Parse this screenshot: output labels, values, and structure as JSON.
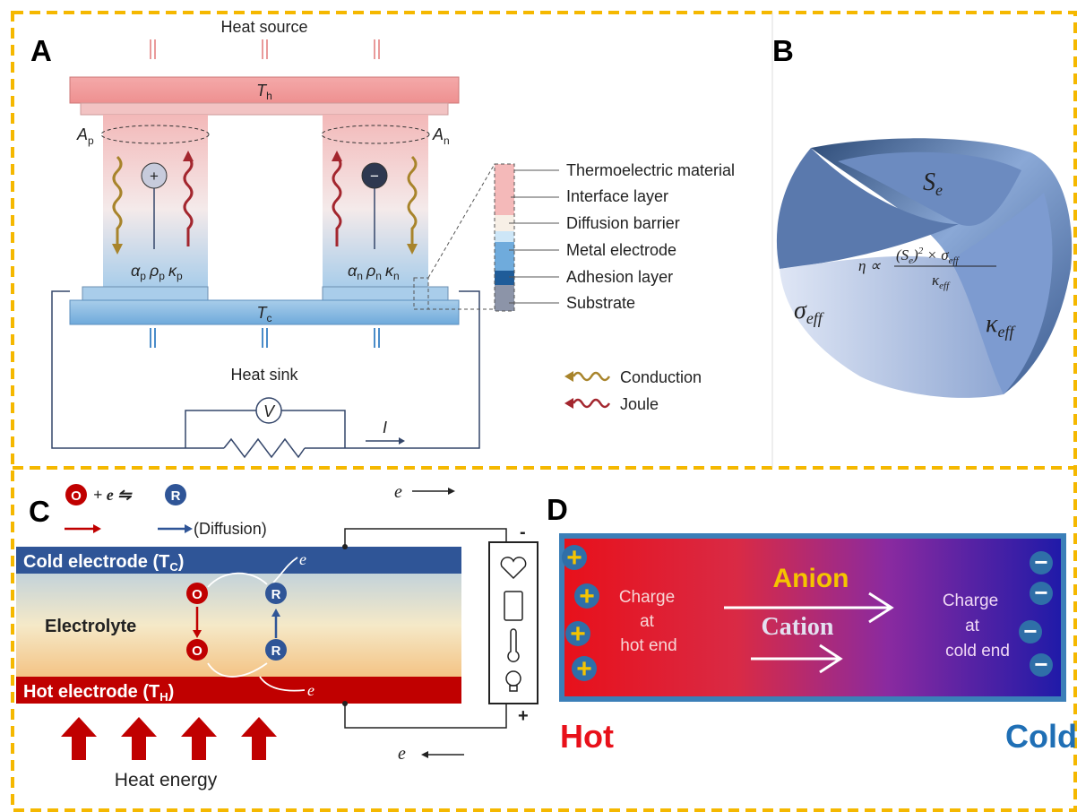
{
  "panels": {
    "a": {
      "label": "A",
      "heat_source": "Heat source",
      "hot_plate": {
        "symbol": "T",
        "sub": "h"
      },
      "cold_plate": {
        "symbol": "T",
        "sub": "c"
      },
      "area_p": {
        "symbol": "A",
        "sub": "p"
      },
      "area_n": {
        "symbol": "A",
        "sub": "n"
      },
      "p_leg": [
        {
          "symbol": "α",
          "sub": "p"
        },
        {
          "symbol": "ρ",
          "sub": "p"
        },
        {
          "symbol": "κ",
          "sub": "p"
        }
      ],
      "n_leg": [
        {
          "symbol": "α",
          "sub": "n"
        },
        {
          "symbol": "ρ",
          "sub": "n"
        },
        {
          "symbol": "κ",
          "sub": "n"
        }
      ],
      "hole": "+",
      "electron": "−",
      "heat_sink": "Heat sink",
      "voltmeter": "V",
      "current": "I",
      "layers": [
        "Thermoelectric material",
        "Interface layer",
        "Diffusion barrier",
        "Metal electrode",
        "Adhesion layer",
        "Substrate"
      ],
      "legend": [
        "Conduction",
        "Joule"
      ]
    },
    "b": {
      "label": "B",
      "seebeck": {
        "symbol": "S",
        "sub": "e"
      },
      "conductivity": {
        "symbol": "σ",
        "sub": "eff"
      },
      "thermal": {
        "symbol": "κ",
        "sub": "eff"
      },
      "formula": {
        "lhs": "η ∝",
        "numerator": {
          "open": "(S",
          "sub1": "e",
          "close": ")",
          "power": "2",
          "times": " × σ",
          "sub2": "eff"
        },
        "denominator": {
          "symbol": "κ",
          "sub": "eff"
        }
      }
    },
    "c": {
      "label": "C",
      "reaction": {
        "oxidized": "O",
        "middle": "+ e ⇋",
        "reduced": "R"
      },
      "diffusion": "(Diffusion)",
      "cold_electrode": {
        "text": "Cold electrode (T",
        "sub": "C",
        "close": ")"
      },
      "electrolyte": "Electrolyte",
      "hot_electrode": {
        "text": "Hot electrode (T",
        "sub": "H",
        "close": ")"
      },
      "species": [
        "O",
        "R",
        "O",
        "R"
      ],
      "electron": "e",
      "minus": "-",
      "plus": "+",
      "heat_energy": "Heat energy"
    },
    "d": {
      "label": "D",
      "anion": "Anion",
      "cation": "Cation",
      "hot_charge": [
        "Charge",
        "at",
        "hot end"
      ],
      "cold_charge": [
        "Charge",
        "at",
        "cold end"
      ],
      "plus": "+",
      "minus": "−",
      "hot": "Hot",
      "cold": "Cold"
    }
  }
}
